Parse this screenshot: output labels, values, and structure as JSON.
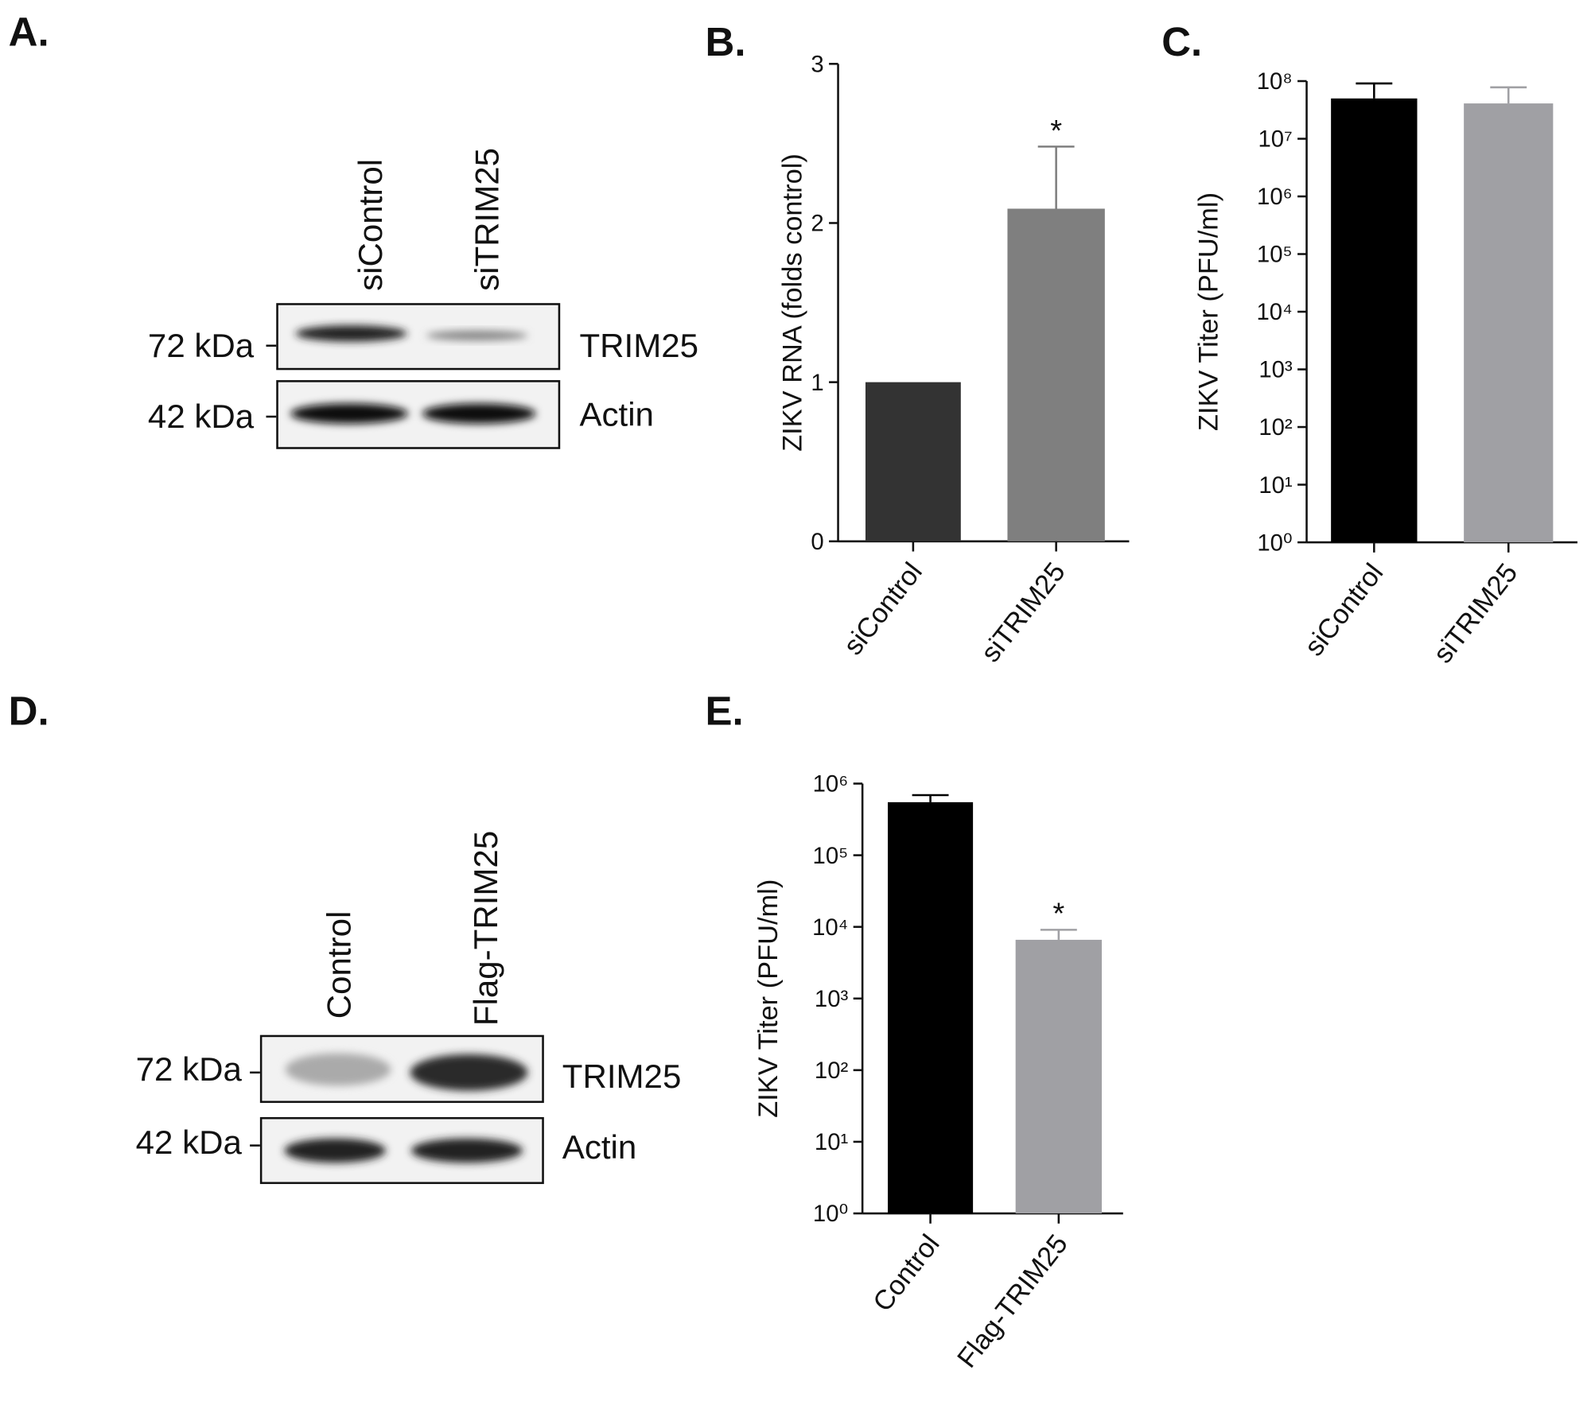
{
  "panels": [
    "A.",
    "B.",
    "C.",
    "D.",
    "E."
  ],
  "blots": [
    {
      "lanes": [
        "siControl",
        "siTRIM25"
      ],
      "rows": [
        {
          "size": "72 kDa",
          "protein": "TRIM25"
        },
        {
          "size": "42 kDa",
          "protein": "Actin"
        }
      ]
    },
    {
      "lanes": [
        "Control",
        "Flag-TRIM25"
      ],
      "rows": [
        {
          "size": "72 kDa",
          "protein": "TRIM25"
        },
        {
          "size": "42 kDa",
          "protein": "Actin"
        }
      ]
    }
  ],
  "chart_data": [
    {
      "type": "bar",
      "ylabel": "ZIKV RNA (folds control)",
      "categories": [
        "siControl",
        "siTRIM25"
      ],
      "values": [
        1,
        2.09
      ],
      "errors": [
        null,
        0.39
      ],
      "significance": [
        null,
        "*"
      ],
      "colors": [
        "#333333",
        "#7f7f7f"
      ],
      "ylim": [
        0,
        3
      ],
      "yticks": [
        0,
        1,
        2,
        3
      ],
      "log_scale": false
    },
    {
      "type": "bar",
      "ylabel": "ZIKV Titer (PFU/ml)",
      "categories": [
        "siControl",
        "siTRIM25"
      ],
      "values": [
        50000000,
        41000000
      ],
      "errors": [
        41000000,
        37000000
      ],
      "significance": [
        null,
        null
      ],
      "colors": [
        "#000000",
        "#a0a0a4"
      ],
      "ylim": [
        1,
        100000000
      ],
      "yticks": [
        {
          "value": 1,
          "label": "10⁰"
        },
        {
          "value": 10,
          "label": "10¹"
        },
        {
          "value": 100,
          "label": "10²"
        },
        {
          "value": 1000,
          "label": "10³"
        },
        {
          "value": 10000,
          "label": "10⁴"
        },
        {
          "value": 100000,
          "label": "10⁵"
        },
        {
          "value": 1000000,
          "label": "10⁶"
        },
        {
          "value": 10000000,
          "label": "10⁷"
        },
        {
          "value": 100000000,
          "label": "10⁸"
        }
      ],
      "log_scale": true
    },
    {
      "type": "bar",
      "ylabel": "ZIKV Titer (PFU/ml)",
      "categories": [
        "Control",
        "Flag-TRIM25"
      ],
      "values": [
        550000,
        6600
      ],
      "errors": [
        140000,
        2500
      ],
      "significance": [
        null,
        "*"
      ],
      "colors": [
        "#000000",
        "#a0a0a4"
      ],
      "ylim": [
        1,
        1000000
      ],
      "yticks": [
        {
          "value": 1,
          "label": "10⁰"
        },
        {
          "value": 10,
          "label": "10¹"
        },
        {
          "value": 100,
          "label": "10²"
        },
        {
          "value": 1000,
          "label": "10³"
        },
        {
          "value": 10000,
          "label": "10⁴"
        },
        {
          "value": 100000,
          "label": "10⁵"
        },
        {
          "value": 1000000,
          "label": "10⁶"
        }
      ],
      "log_scale": true
    }
  ]
}
